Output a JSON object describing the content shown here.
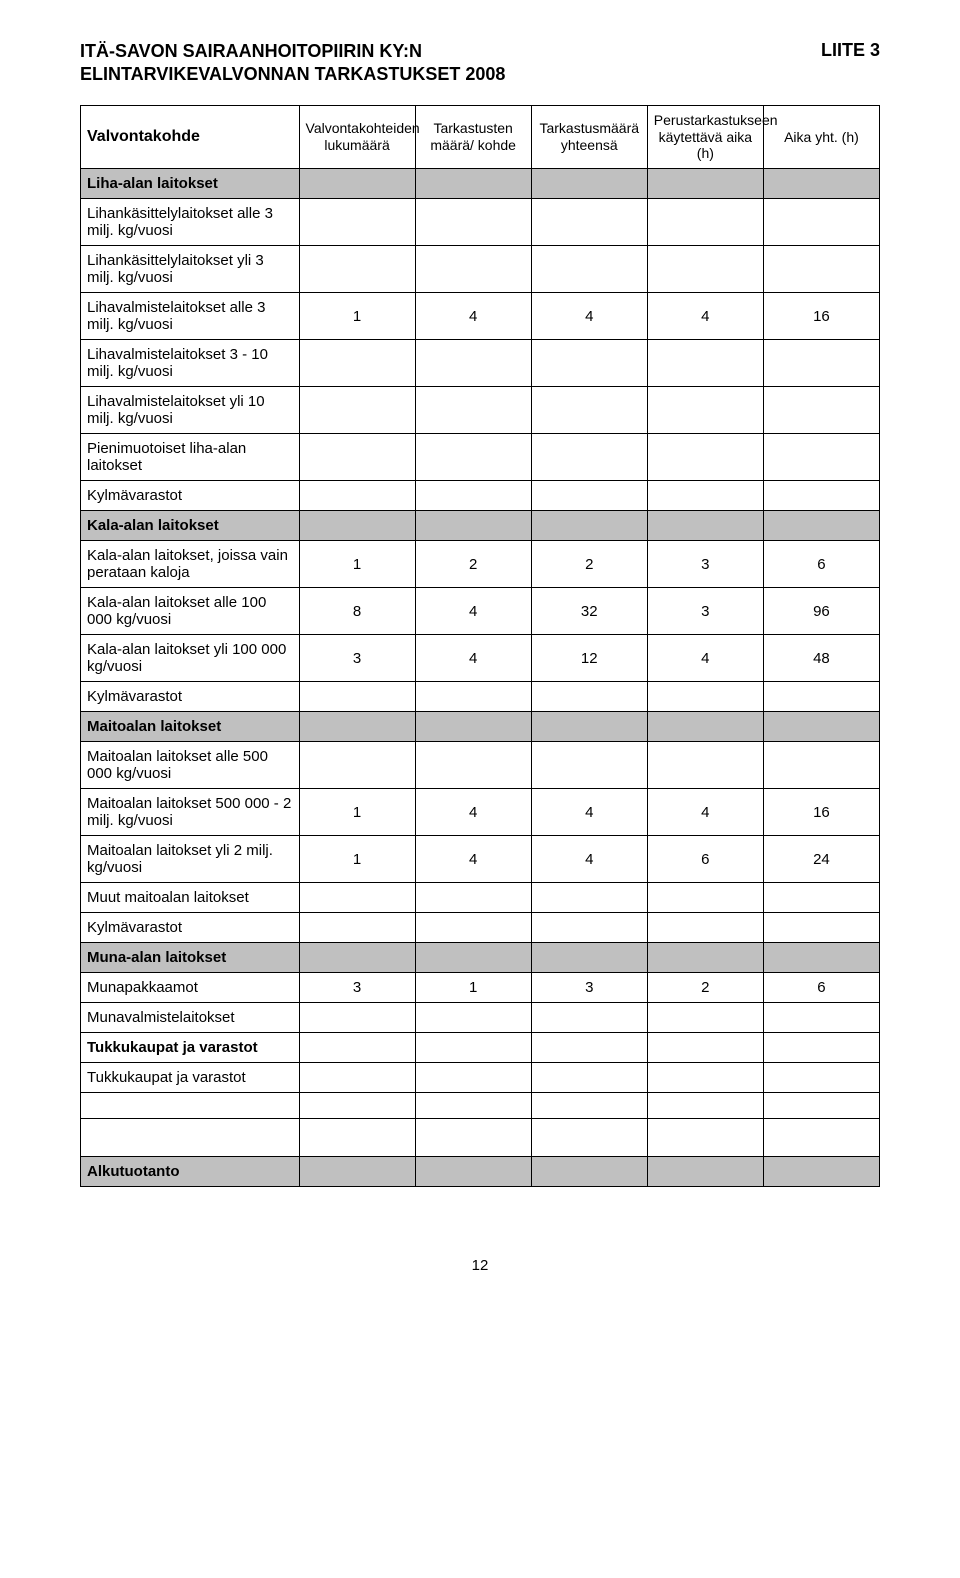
{
  "header": {
    "title_line1": "ITÄ-SAVON SAIRAANHOITOPIIRIN KY:N",
    "title_line2": "ELINTARVIKEVALVONNAN TARKASTUKSET 2008",
    "annex": "LIITE 3"
  },
  "columns": {
    "c0": "Valvontakohde",
    "c1": "Valvontakohteiden lukumäärä",
    "c2": "Tarkastusten määrä/ kohde",
    "c3": "Tarkastusmäärä yhteensä",
    "c4": "Perustarkastukseen käytettävä aika (h)",
    "c5": "Aika yht. (h)"
  },
  "colors": {
    "section_bg": "#c0c0c0",
    "border": "#000000",
    "page_bg": "#ffffff"
  },
  "rows": [
    {
      "label": "Liha-alan laitokset",
      "section": true
    },
    {
      "label": "Lihankäsittelylaitokset alle 3 milj. kg/vuosi"
    },
    {
      "label": "Lihankäsittelylaitokset yli 3 milj. kg/vuosi"
    },
    {
      "label": "Lihavalmistelaitokset alle 3 milj. kg/vuosi",
      "v": [
        "1",
        "4",
        "4",
        "4",
        "16"
      ]
    },
    {
      "label": "Lihavalmistelaitokset 3 - 10 milj. kg/vuosi"
    },
    {
      "label": "Lihavalmistelaitokset yli 10 milj. kg/vuosi"
    },
    {
      "label": "Pienimuotoiset liha-alan laitokset"
    },
    {
      "label": "Kylmävarastot"
    },
    {
      "label": "Kala-alan laitokset",
      "section": true
    },
    {
      "label": "Kala-alan laitokset, joissa vain perataan kaloja",
      "v": [
        "1",
        "2",
        "2",
        "3",
        "6"
      ]
    },
    {
      "label": "Kala-alan laitokset alle 100 000 kg/vuosi",
      "v": [
        "8",
        "4",
        "32",
        "3",
        "96"
      ]
    },
    {
      "label": "Kala-alan laitokset yli 100 000 kg/vuosi",
      "v": [
        "3",
        "4",
        "12",
        "4",
        "48"
      ]
    },
    {
      "label": "Kylmävarastot"
    },
    {
      "label": "Maitoalan laitokset",
      "section": true
    },
    {
      "label": "Maitoalan laitokset alle 500 000 kg/vuosi"
    },
    {
      "label": "Maitoalan laitokset 500 000 - 2 milj. kg/vuosi",
      "v": [
        "1",
        "4",
        "4",
        "4",
        "16"
      ]
    },
    {
      "label": "Maitoalan laitokset yli 2 milj. kg/vuosi",
      "v": [
        "1",
        "4",
        "4",
        "6",
        "24"
      ]
    },
    {
      "label": "Muut maitoalan laitokset"
    },
    {
      "label": "Kylmävarastot"
    },
    {
      "label": "Muna-alan laitokset",
      "section": true
    },
    {
      "label": "Munapakkaamot",
      "v": [
        "3",
        "1",
        "3",
        "2",
        "6"
      ]
    },
    {
      "label": "Munavalmistelaitokset"
    },
    {
      "label": "Tukkukaupat ja varastot",
      "section_nobg": true
    },
    {
      "label": "Tukkukaupat ja varastot"
    },
    {
      "label": "",
      "spacer": true
    },
    {
      "label": "",
      "spacer2": true
    },
    {
      "label": "Alkutuotanto",
      "section": true
    }
  ],
  "page_number": "12"
}
